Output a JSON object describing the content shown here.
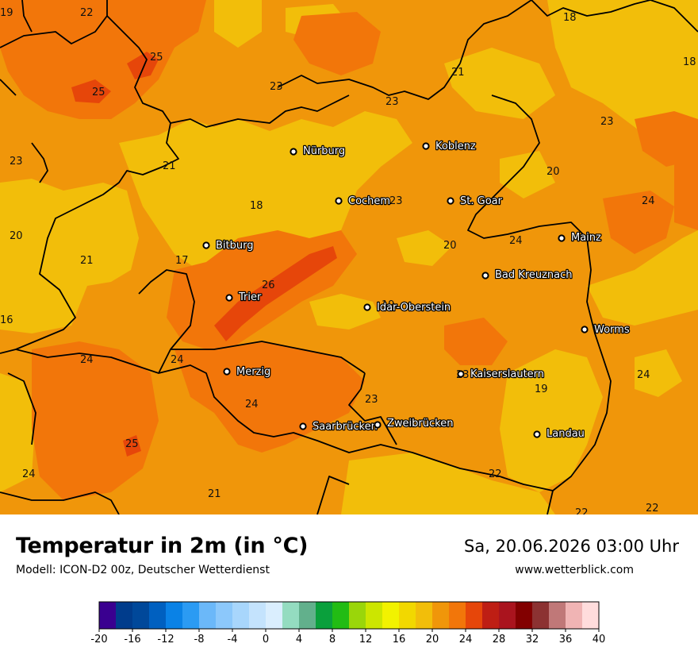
{
  "title": "Temperatur in 2m (in °C)",
  "model": "Modell: ICON-D2 00z, Deutscher Wetterdienst",
  "datetime": "Sa, 20.06.2026 03:00 Uhr",
  "website": "www.wetterblick.com",
  "cities": [
    {
      "name": "Nürburg",
      "label": "Nürburg"
    },
    {
      "name": "Koblenz",
      "label": "Koblenz"
    },
    {
      "name": "Cochem",
      "label": "Cochem"
    },
    {
      "name": "St. Goar",
      "label": "St. Goar"
    },
    {
      "name": "Bitburg",
      "label": "Bitburg"
    },
    {
      "name": "Mainz",
      "label": "Mainz"
    },
    {
      "name": "Bad Kreuznach",
      "label": "Bad Kreuznach"
    },
    {
      "name": "Trier",
      "label": "Trier"
    },
    {
      "name": "Idar-Oberstein",
      "label": "Idar-Oberstein"
    },
    {
      "name": "Worms",
      "label": "Worms"
    },
    {
      "name": "Merzig",
      "label": "Merzig"
    },
    {
      "name": "Kaiserslautern",
      "label": "Kaiserslautern"
    },
    {
      "name": "Saarbrücken",
      "label": "Saarbrücken"
    },
    {
      "name": "Zweibrücken",
      "label": "Zweibrücken"
    },
    {
      "name": "Landau",
      "label": "Landau"
    }
  ],
  "temperature_labels": [
    "22",
    "19",
    "18",
    "25",
    "25",
    "23",
    "21",
    "18",
    "23",
    "23",
    "23",
    "21",
    "20",
    "23",
    "24",
    "18",
    "20",
    "24",
    "20",
    "21",
    "17",
    "26",
    "16",
    "19",
    "24",
    "24",
    "24",
    "23",
    "19",
    "24",
    "25",
    "23",
    "22",
    "24",
    "21",
    "22",
    "22"
  ],
  "colorbar": {
    "tick_labels": [
      "-20",
      "-16",
      "-12",
      "-8",
      "-4",
      "0",
      "4",
      "8",
      "12",
      "16",
      "20",
      "24",
      "28",
      "32",
      "36",
      "40"
    ],
    "colors": [
      "#3a0090",
      "#003c8c",
      "#00489a",
      "#0060c0",
      "#0a82e6",
      "#2b9bf3",
      "#6bb8f9",
      "#8cc8fb",
      "#a8d6fc",
      "#c4e3fd",
      "#daeefe",
      "#94dcc0",
      "#62b08c",
      "#0aa03c",
      "#22bc14",
      "#9ad60a",
      "#cce600",
      "#f2f200",
      "#f2d800",
      "#f2be0a",
      "#f0960a",
      "#f2760a",
      "#e6460a",
      "#be1e14",
      "#aa141e",
      "#820000",
      "#8c3232",
      "#c07878",
      "#f0b4b4",
      "#ffdcdc"
    ]
  },
  "map_colors": {
    "temp_17_18": "#f2be0a",
    "temp_18_20": "#f2be0a",
    "temp_20_22": "#f0960a",
    "temp_22_24": "#f2760a",
    "temp_24_26": "#e6460a",
    "boundary": "#000000"
  }
}
